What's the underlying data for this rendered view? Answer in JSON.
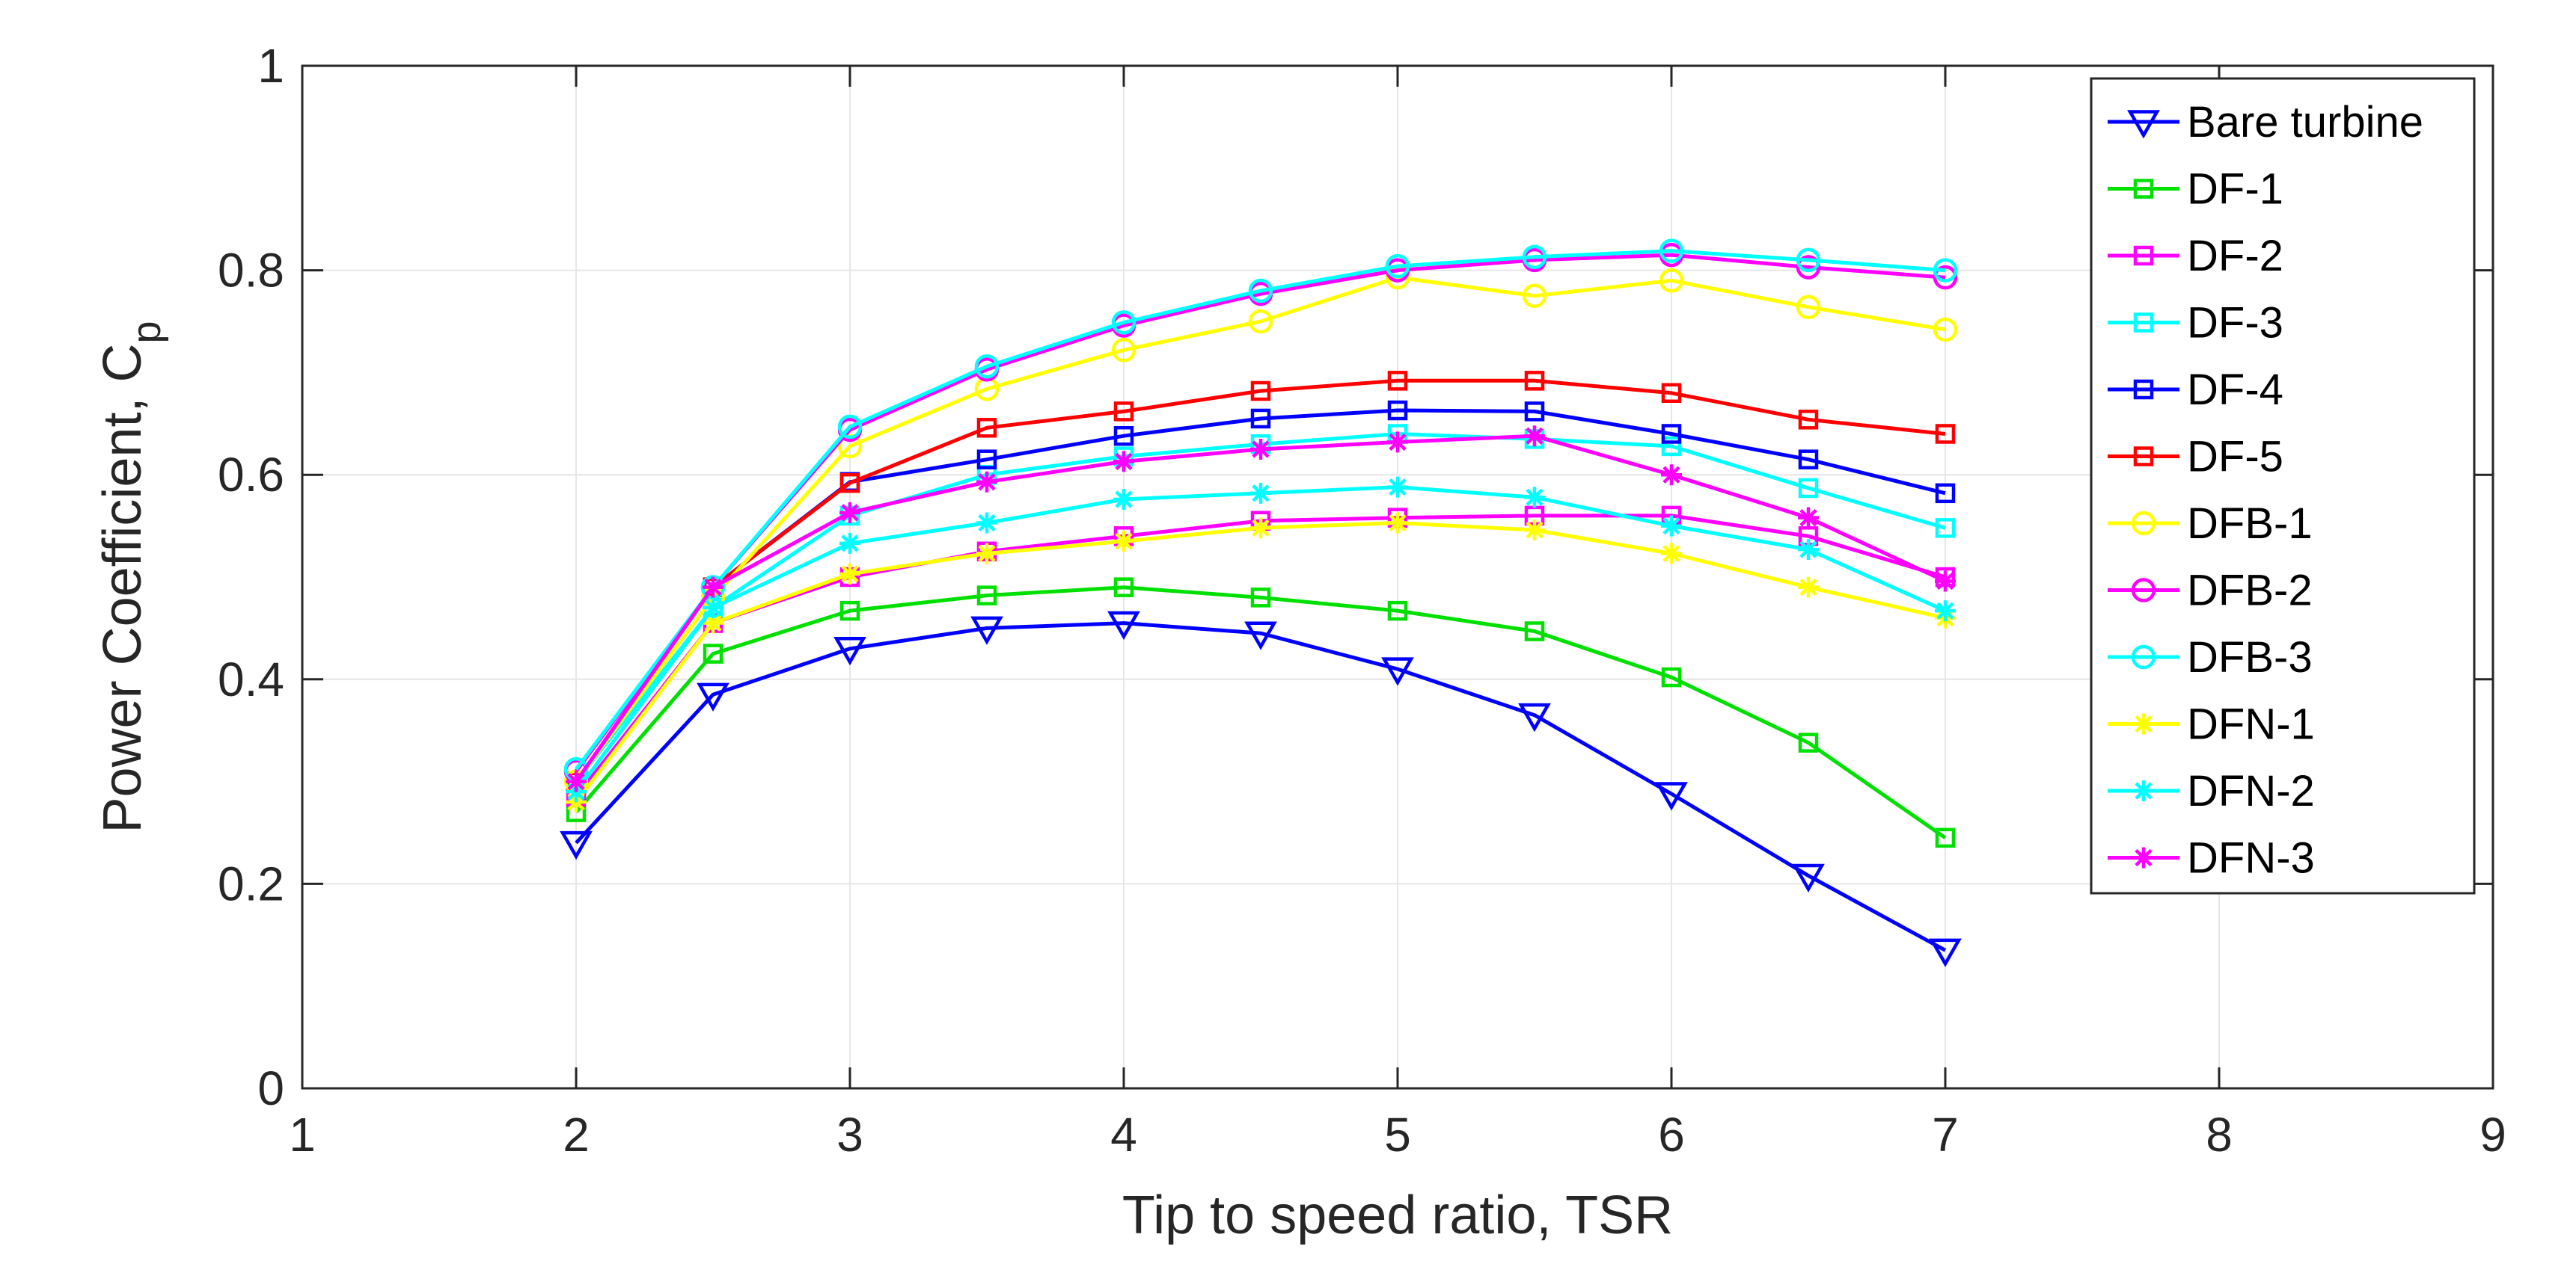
{
  "chart_data": {
    "type": "line",
    "title": "",
    "xlabel": "Tip to speed ratio, TSR",
    "ylabel": "Power Coefficient, C",
    "ylabel_subscript": "p",
    "xlim": [
      1,
      9
    ],
    "ylim": [
      0,
      1
    ],
    "grid": true,
    "legend_position": "top-right",
    "x_ticks": [
      "1",
      "2",
      "3",
      "4",
      "5",
      "6",
      "7",
      "8",
      "9"
    ],
    "y_ticks": [
      "0",
      "0.2",
      "0.4",
      "0.6",
      "0.8",
      "1"
    ],
    "x": [
      2,
      2.5,
      3,
      3.5,
      4,
      4.5,
      5,
      5.5,
      6,
      6.5,
      7
    ],
    "series": [
      {
        "name": "Bare turbine",
        "color": "#0000ff",
        "marker": "triangle-down",
        "values": [
          0.24,
          0.385,
          0.43,
          0.45,
          0.455,
          0.445,
          0.41,
          0.365,
          0.288,
          0.208,
          0.135
        ]
      },
      {
        "name": "DF-1",
        "color": "#00e000",
        "marker": "square",
        "values": [
          0.27,
          0.425,
          0.467,
          0.482,
          0.49,
          0.48,
          0.467,
          0.447,
          0.402,
          0.338,
          0.245
        ]
      },
      {
        "name": "DF-2",
        "color": "#ff00ff",
        "marker": "square",
        "values": [
          0.285,
          0.455,
          0.5,
          0.525,
          0.54,
          0.555,
          0.558,
          0.56,
          0.56,
          0.54,
          0.5
        ]
      },
      {
        "name": "DF-3",
        "color": "#00ffff",
        "marker": "square",
        "values": [
          0.3,
          0.47,
          0.56,
          0.6,
          0.618,
          0.63,
          0.64,
          0.635,
          0.628,
          0.587,
          0.548
        ]
      },
      {
        "name": "DF-4",
        "color": "#0000ff",
        "marker": "square",
        "values": [
          0.3,
          0.49,
          0.593,
          0.615,
          0.638,
          0.655,
          0.663,
          0.662,
          0.64,
          0.615,
          0.582
        ]
      },
      {
        "name": "DF-5",
        "color": "#ff0000",
        "marker": "square",
        "values": [
          0.3,
          0.49,
          0.592,
          0.646,
          0.662,
          0.682,
          0.692,
          0.692,
          0.68,
          0.654,
          0.64
        ]
      },
      {
        "name": "DFB-1",
        "color": "#ffff00",
        "marker": "circle",
        "values": [
          0.3,
          0.48,
          0.628,
          0.684,
          0.722,
          0.75,
          0.793,
          0.775,
          0.79,
          0.764,
          0.742
        ]
      },
      {
        "name": "DFB-2",
        "color": "#ff00ff",
        "marker": "circle",
        "values": [
          0.31,
          0.49,
          0.644,
          0.703,
          0.746,
          0.777,
          0.8,
          0.81,
          0.815,
          0.803,
          0.793
        ]
      },
      {
        "name": "DFB-3",
        "color": "#00ffff",
        "marker": "circle",
        "values": [
          0.312,
          0.49,
          0.647,
          0.706,
          0.749,
          0.78,
          0.804,
          0.813,
          0.819,
          0.81,
          0.8
        ]
      },
      {
        "name": "DFN-1",
        "color": "#ffff00",
        "marker": "asterisk",
        "values": [
          0.28,
          0.455,
          0.503,
          0.523,
          0.535,
          0.548,
          0.553,
          0.546,
          0.523,
          0.49,
          0.46
        ]
      },
      {
        "name": "DFN-2",
        "color": "#00ffff",
        "marker": "asterisk",
        "values": [
          0.29,
          0.47,
          0.533,
          0.553,
          0.576,
          0.582,
          0.588,
          0.578,
          0.55,
          0.527,
          0.467
        ]
      },
      {
        "name": "DFN-3",
        "color": "#ff00ff",
        "marker": "asterisk",
        "values": [
          0.3,
          0.49,
          0.563,
          0.593,
          0.613,
          0.625,
          0.632,
          0.638,
          0.6,
          0.558,
          0.496
        ]
      }
    ]
  }
}
